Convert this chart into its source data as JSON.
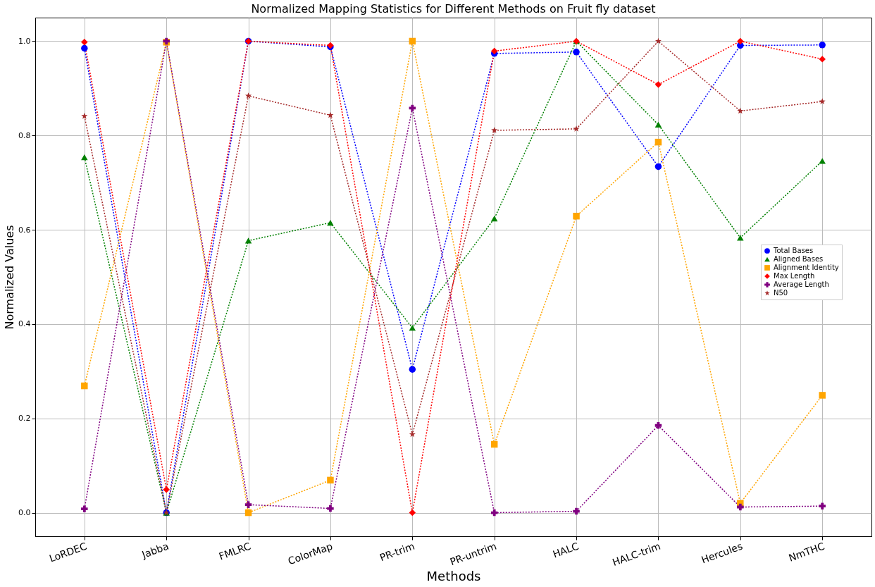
{
  "chart_data": {
    "type": "line",
    "title": "Normalized Mapping Statistics for Different Methods on Fruit fly dataset",
    "xlabel": "Methods",
    "ylabel": "Normalized Values",
    "categories": [
      "LoRDEC",
      "Jabba",
      "FMLRC",
      "ColorMap",
      "PR-trim",
      "PR-untrim",
      "HALC",
      "HALC-trim",
      "Hercules",
      "NmTHC"
    ],
    "series": [
      {
        "name": "Total Bases",
        "color": "#0000ff",
        "marker": "circle",
        "values": [
          0.985,
          0.0,
          1.0,
          0.988,
          0.304,
          0.974,
          0.977,
          0.734,
          0.991,
          0.992
        ]
      },
      {
        "name": "Aligned Bases",
        "color": "#008000",
        "marker": "triangle",
        "values": [
          0.754,
          0.0,
          0.577,
          0.615,
          0.392,
          0.624,
          1.0,
          0.823,
          0.583,
          0.746
        ]
      },
      {
        "name": "Alignment Identity",
        "color": "#ffa500",
        "marker": "square",
        "values": [
          0.269,
          0.998,
          0.0,
          0.069,
          1.0,
          0.145,
          0.629,
          0.786,
          0.02,
          0.249
        ]
      },
      {
        "name": "Max Length",
        "color": "#ff0000",
        "marker": "diamond",
        "values": [
          0.998,
          0.049,
          1.0,
          0.991,
          0.0,
          0.979,
          1.0,
          0.908,
          1.0,
          0.962
        ]
      },
      {
        "name": "Average Length",
        "color": "#800080",
        "marker": "cross",
        "values": [
          0.008,
          1.0,
          0.017,
          0.009,
          0.858,
          0.0,
          0.003,
          0.185,
          0.012,
          0.014
        ]
      },
      {
        "name": "N50",
        "color": "#a52a2a",
        "marker": "star",
        "values": [
          0.841,
          0.0,
          0.884,
          0.843,
          0.166,
          0.811,
          0.814,
          1.0,
          0.852,
          0.872
        ]
      }
    ],
    "ylim": [
      -0.05,
      1.05
    ],
    "yticks": [
      {
        "value": 0,
        "label": "0.0"
      },
      0.2,
      0.4,
      0.6,
      0.8,
      {
        "value": 1,
        "label": "1.0"
      }
    ],
    "grid": true,
    "legend": "right",
    "line_style": "dotted"
  }
}
